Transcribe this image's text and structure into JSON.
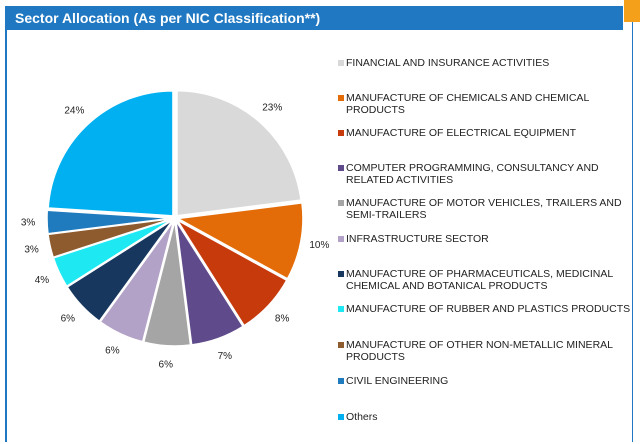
{
  "chart_data": {
    "type": "pie",
    "title": "Sector Allocation (As per NIC Classification**)",
    "categories": [
      "FINANCIAL AND INSURANCE ACTIVITIES",
      "MANUFACTURE OF CHEMICALS AND CHEMICAL PRODUCTS",
      "MANUFACTURE OF ELECTRICAL EQUIPMENT",
      "COMPUTER PROGRAMMING, CONSULTANCY AND RELATED ACTIVITIES",
      "MANUFACTURE OF MOTOR VEHICLES, TRAILERS AND SEMI-TRAILERS",
      "INFRASTRUCTURE SECTOR",
      "MANUFACTURE OF PHARMACEUTICALS, MEDICINAL CHEMICAL AND BOTANICAL PRODUCTS",
      "MANUFACTURE OF RUBBER AND PLASTICS PRODUCTS",
      "MANUFACTURE OF OTHER NON-METALLIC MINERAL PRODUCTS",
      "CIVIL ENGINEERING",
      "Others"
    ],
    "values": [
      23,
      10,
      8,
      7,
      6,
      6,
      6,
      4,
      3,
      3,
      24
    ],
    "value_labels": [
      "23%",
      "10%",
      "8%",
      "7%",
      "6%",
      "6%",
      "6%",
      "4%",
      "3%",
      "3%",
      "24%"
    ],
    "colors": [
      "#d9d9d9",
      "#e36c09",
      "#c63a0c",
      "#5f4b8b",
      "#a5a5a5",
      "#b3a2c7",
      "#17375e",
      "#1ee8f2",
      "#8e5b2e",
      "#1f7bbd",
      "#00b0f0"
    ]
  }
}
